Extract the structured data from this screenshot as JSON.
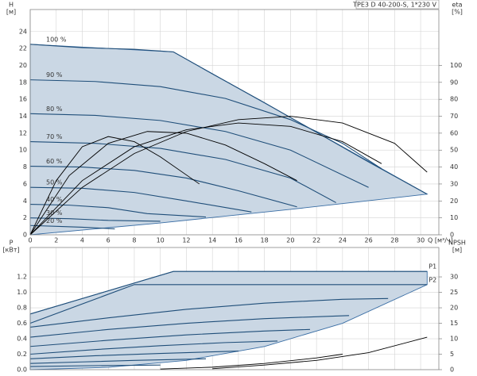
{
  "chart_data": [
    {
      "type": "line",
      "title": "TPE3 D 40-200-S, 1*230 V",
      "y_label": "H",
      "y_unit": "[м]",
      "y2_label": "eta",
      "y2_unit": "[%]",
      "x_label": "Q [м³/ч]",
      "grid": true,
      "xlim": [
        0,
        31.4
      ],
      "xticks": [
        0,
        2,
        4,
        6,
        8,
        10,
        12,
        14,
        16,
        18,
        20,
        22,
        24,
        26,
        28,
        30
      ],
      "ylim": [
        0,
        26.6
      ],
      "yticks": [
        0,
        2,
        4,
        6,
        8,
        10,
        12,
        14,
        16,
        18,
        20,
        22,
        24
      ],
      "y2lim": [
        0,
        133
      ],
      "y2ticks": [
        0,
        10,
        20,
        30,
        40,
        50,
        60,
        70,
        80,
        90,
        100
      ],
      "area": {
        "color": "#cad7e4",
        "x": [
          0,
          6,
          11,
          30.5,
          20,
          10,
          0
        ],
        "y": [
          22.5,
          22,
          21.6,
          4.8,
          3,
          1.4,
          0
        ]
      },
      "series": [
        {
          "name": "100 %",
          "color": "#1f4e79",
          "x": [
            0,
            2,
            4,
            6,
            8,
            10,
            11,
            14,
            18,
            22,
            26,
            30.5
          ],
          "values": [
            22.5,
            22.3,
            22.1,
            22,
            21.9,
            21.7,
            21.6,
            19,
            15.6,
            12.1,
            8.6,
            4.8
          ]
        },
        {
          "name": "90 %",
          "color": "#1f4e79",
          "x": [
            0,
            5,
            10,
            15,
            20,
            24,
            27
          ],
          "values": [
            18.3,
            18.1,
            17.5,
            16.1,
            13.6,
            10.8,
            7.8
          ]
        },
        {
          "name": "80 %",
          "color": "#1f4e79",
          "x": [
            0,
            5,
            10,
            15,
            20,
            26
          ],
          "values": [
            14.3,
            14.1,
            13.5,
            12.2,
            10,
            5.6
          ]
        },
        {
          "name": "70 %",
          "color": "#1f4e79",
          "x": [
            0,
            5,
            10,
            15,
            20,
            23.5
          ],
          "values": [
            11,
            10.8,
            10.2,
            8.9,
            6.7,
            3.8
          ]
        },
        {
          "name": "60 %",
          "color": "#1f4e79",
          "x": [
            0,
            4,
            8,
            12,
            16,
            20.5
          ],
          "values": [
            8.1,
            8,
            7.6,
            6.7,
            5.2,
            3.3
          ]
        },
        {
          "name": "50 %",
          "color": "#1f4e79",
          "x": [
            0,
            4,
            8,
            12,
            17
          ],
          "values": [
            5.6,
            5.5,
            5,
            4,
            2.7
          ]
        },
        {
          "name": "40 %",
          "color": "#1f4e79",
          "x": [
            0,
            3,
            6,
            9,
            13.5
          ],
          "values": [
            3.6,
            3.5,
            3.2,
            2.5,
            2.1
          ]
        },
        {
          "name": "30 %",
          "color": "#1f4e79",
          "x": [
            0,
            3,
            6,
            10
          ],
          "values": [
            2,
            1.9,
            1.7,
            1.6
          ]
        },
        {
          "name": "20 %",
          "color": "#1f4e79",
          "x": [
            0,
            2,
            4,
            6.5
          ],
          "values": [
            1.1,
            1,
            0.9,
            0.7
          ]
        },
        {
          "axis": "y2",
          "color": "#000000",
          "x": [
            0,
            4,
            8,
            12,
            16,
            20,
            24,
            28,
            30.5
          ],
          "values": [
            0,
            28,
            48,
            61,
            68,
            70,
            66,
            54,
            37
          ]
        },
        {
          "axis": "y2",
          "color": "#000000",
          "x": [
            0,
            4,
            8,
            12,
            16,
            20,
            24,
            27
          ],
          "values": [
            0,
            32,
            52,
            62,
            66,
            64,
            55,
            42
          ]
        },
        {
          "axis": "y2",
          "color": "#000000",
          "x": [
            0,
            3,
            6,
            9,
            12,
            15,
            18,
            20.5
          ],
          "values": [
            0,
            35,
            54,
            61,
            60,
            53,
            42,
            32
          ]
        },
        {
          "axis": "y2",
          "color": "#000000",
          "x": [
            0,
            2,
            4,
            6,
            8,
            10,
            13
          ],
          "values": [
            0,
            32,
            52,
            58,
            55,
            46,
            30
          ]
        }
      ]
    },
    {
      "type": "line",
      "y_label": "P",
      "y_unit": "[кВт]",
      "y2_label": "NPSH",
      "y2_unit": "[м]",
      "grid": true,
      "xlim": [
        0,
        31.4
      ],
      "xticks": [
        0,
        2,
        4,
        6,
        8,
        10,
        12,
        14,
        16,
        18,
        20,
        22,
        24,
        26,
        28,
        30
      ],
      "ylim": [
        0,
        1.58
      ],
      "yticks": [
        {
          "value": 0,
          "label": "0.0"
        },
        0.2,
        0.4,
        0.6,
        0.8,
        {
          "value": 1,
          "label": "1.0"
        },
        1.2
      ],
      "y2lim": [
        0,
        39.5
      ],
      "y2ticks": [
        0,
        5,
        10,
        15,
        20,
        25,
        30
      ],
      "area": {
        "color": "#cad7e4",
        "x": [
          0,
          11,
          30.5,
          30.5,
          24,
          18,
          12,
          6,
          0
        ],
        "y": [
          0.72,
          1.27,
          1.27,
          1.1,
          0.6,
          0.3,
          0.12,
          0.03,
          0
        ]
      },
      "series": [
        {
          "name": "P1",
          "color": "#1f4e79",
          "x": [
            0,
            11,
            20,
            30.5
          ],
          "values": [
            0.72,
            1.27,
            1.27,
            1.27
          ]
        },
        {
          "name": "P2",
          "color": "#1f4e79",
          "x": [
            0,
            8,
            20,
            30.5
          ],
          "values": [
            0.6,
            1.1,
            1.1,
            1.1
          ]
        },
        {
          "color": "#1f4e79",
          "x": [
            0,
            6,
            12,
            18,
            24,
            27.5
          ],
          "values": [
            0.55,
            0.67,
            0.78,
            0.86,
            0.91,
            0.92
          ]
        },
        {
          "color": "#1f4e79",
          "x": [
            0,
            6,
            12,
            18,
            24.5
          ],
          "values": [
            0.42,
            0.52,
            0.6,
            0.66,
            0.7
          ]
        },
        {
          "color": "#1f4e79",
          "x": [
            0,
            6,
            12,
            18,
            21.5
          ],
          "values": [
            0.3,
            0.38,
            0.45,
            0.5,
            0.52
          ]
        },
        {
          "color": "#1f4e79",
          "x": [
            0,
            5,
            10,
            15,
            19
          ],
          "values": [
            0.2,
            0.26,
            0.31,
            0.35,
            0.37
          ]
        },
        {
          "color": "#1f4e79",
          "x": [
            0,
            5,
            10,
            16
          ],
          "values": [
            0.14,
            0.18,
            0.21,
            0.24
          ]
        },
        {
          "color": "#1f4e79",
          "x": [
            0,
            4,
            8,
            13.5
          ],
          "values": [
            0.08,
            0.1,
            0.12,
            0.14
          ]
        },
        {
          "color": "#1f4e79",
          "x": [
            0,
            4,
            10
          ],
          "values": [
            0.04,
            0.05,
            0.06
          ]
        },
        {
          "axis": "y2",
          "color": "#000000",
          "x": [
            14,
            18,
            22,
            26,
            30.5
          ],
          "values": [
            0.3,
            1.5,
            3,
            5.5,
            10.5
          ]
        },
        {
          "axis": "y2",
          "color": "#000000",
          "x": [
            10,
            14,
            18,
            22,
            24
          ],
          "values": [
            0.2,
            0.8,
            2,
            3.8,
            5
          ]
        }
      ]
    }
  ]
}
